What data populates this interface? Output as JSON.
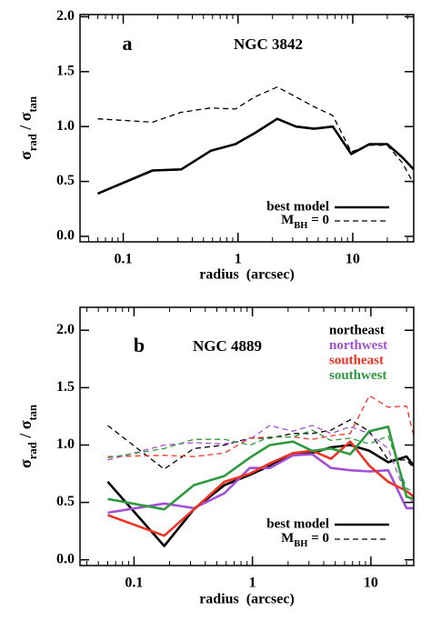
{
  "chart_data": [
    {
      "type": "line",
      "panel": "a",
      "title": "NGC 3842",
      "x_label": "radius  (arcsec)",
      "y_label": [
        {
          "text": "σ",
          "sub": "rad"
        },
        {
          "text": " / σ",
          "sub": "tan"
        }
      ],
      "log_x": true,
      "xlim": [
        0.042,
        34
      ],
      "ylim": [
        -0.05,
        2.02
      ],
      "xticks": [
        0.1,
        1,
        10
      ],
      "xminor": [
        0.05,
        0.06,
        0.07,
        0.08,
        0.09,
        0.2,
        0.3,
        0.4,
        0.5,
        0.6,
        0.7,
        0.8,
        0.9,
        2,
        3,
        4,
        5,
        6,
        7,
        8,
        9,
        20,
        30
      ],
      "yticks": [
        {
          "value": 0,
          "label": "0.0"
        },
        {
          "value": 0.5,
          "label": "0.5"
        },
        {
          "value": 1,
          "label": "1.0"
        },
        {
          "value": 1.5,
          "label": "1.5"
        },
        {
          "value": 2,
          "label": "2.0"
        }
      ],
      "style_legend": [
        "best model",
        [
          {
            "text": "M",
            "sub": "BH"
          },
          {
            "text": " = 0"
          }
        ]
      ],
      "x": [
        0.06,
        0.18,
        0.32,
        0.58,
        0.95,
        1.4,
        2.2,
        3.2,
        4.6,
        6.7,
        9.7,
        14,
        20,
        27,
        34
      ],
      "series": [
        {
          "color": "#000000",
          "values": [
            0.39,
            0.6,
            0.61,
            0.78,
            0.84,
            0.94,
            1.07,
            1.0,
            0.98,
            1.0,
            0.75,
            0.84,
            0.84,
            0.72,
            0.61
          ],
          "values_no_bh": [
            1.07,
            1.04,
            1.13,
            1.17,
            1.16,
            1.27,
            1.36,
            1.27,
            1.18,
            1.1,
            0.77,
            0.83,
            0.83,
            0.67,
            0.48
          ]
        }
      ]
    },
    {
      "type": "line",
      "panel": "b",
      "title": "NGC 4889",
      "x_label": "radius  (arcsec)",
      "y_label": [
        {
          "text": "σ",
          "sub": "rad"
        },
        {
          "text": " / σ",
          "sub": "tan"
        }
      ],
      "log_x": true,
      "xlim": [
        0.035,
        23
      ],
      "ylim": [
        -0.05,
        2.2
      ],
      "xticks": [
        0.1,
        1,
        10
      ],
      "xminor": [
        0.04,
        0.05,
        0.06,
        0.07,
        0.08,
        0.09,
        0.2,
        0.3,
        0.4,
        0.5,
        0.6,
        0.7,
        0.8,
        0.9,
        2,
        3,
        4,
        5,
        6,
        7,
        8,
        9,
        20
      ],
      "yticks": [
        {
          "value": 0,
          "label": "0.0"
        },
        {
          "value": 0.5,
          "label": "0.5"
        },
        {
          "value": 1,
          "label": "1.0"
        },
        {
          "value": 1.5,
          "label": "1.5"
        },
        {
          "value": 2,
          "label": "2.0"
        }
      ],
      "style_legend": [
        "best model",
        [
          {
            "text": "M",
            "sub": "BH"
          },
          {
            "text": " = 0"
          }
        ]
      ],
      "x": [
        0.06,
        0.18,
        0.32,
        0.58,
        0.95,
        1.4,
        2.2,
        3.2,
        4.6,
        6.7,
        9.7,
        14,
        20,
        23
      ],
      "series": [
        {
          "name": "northeast",
          "color": "#000000",
          "values": [
            0.68,
            0.12,
            0.44,
            0.65,
            0.74,
            0.82,
            0.92,
            0.93,
            0.98,
            1.0,
            0.95,
            0.85,
            0.9,
            0.82
          ],
          "values_no_bh": [
            1.17,
            0.79,
            0.97,
            1.0,
            1.06,
            1.06,
            1.1,
            1.1,
            1.13,
            1.22,
            1.12,
            0.87,
            0.87,
            0.8
          ]
        },
        {
          "name": "northwest",
          "color": "#a24fd6",
          "values": [
            0.41,
            0.49,
            0.45,
            0.58,
            0.8,
            0.8,
            0.91,
            0.92,
            0.8,
            0.78,
            0.77,
            0.78,
            0.45,
            0.45
          ],
          "values_no_bh": [
            0.87,
            1.0,
            1.02,
            1.01,
            1.05,
            1.17,
            1.12,
            1.17,
            1.1,
            1.16,
            1.1,
            0.97,
            0.55,
            0.5
          ]
        },
        {
          "name": "southeast",
          "color": "#ee3322",
          "values": [
            0.39,
            0.21,
            0.44,
            0.68,
            0.75,
            0.84,
            0.93,
            0.95,
            0.88,
            1.03,
            0.82,
            0.68,
            0.6,
            0.55
          ],
          "values_no_bh": [
            0.9,
            0.91,
            0.9,
            0.93,
            1.06,
            1.07,
            1.07,
            1.05,
            1.08,
            1.1,
            1.43,
            1.33,
            1.34,
            1.08
          ]
        },
        {
          "name": "southwest",
          "color": "#2e9a3e",
          "values": [
            0.53,
            0.44,
            0.65,
            0.73,
            0.89,
            1.0,
            1.03,
            0.95,
            0.97,
            0.92,
            1.12,
            1.16,
            0.55,
            0.53
          ],
          "values_no_bh": [
            0.89,
            0.97,
            1.05,
            1.05,
            1.0,
            1.07,
            1.07,
            1.13,
            1.04,
            1.06,
            1.01,
            1.08,
            0.62,
            0.6
          ]
        }
      ]
    }
  ]
}
